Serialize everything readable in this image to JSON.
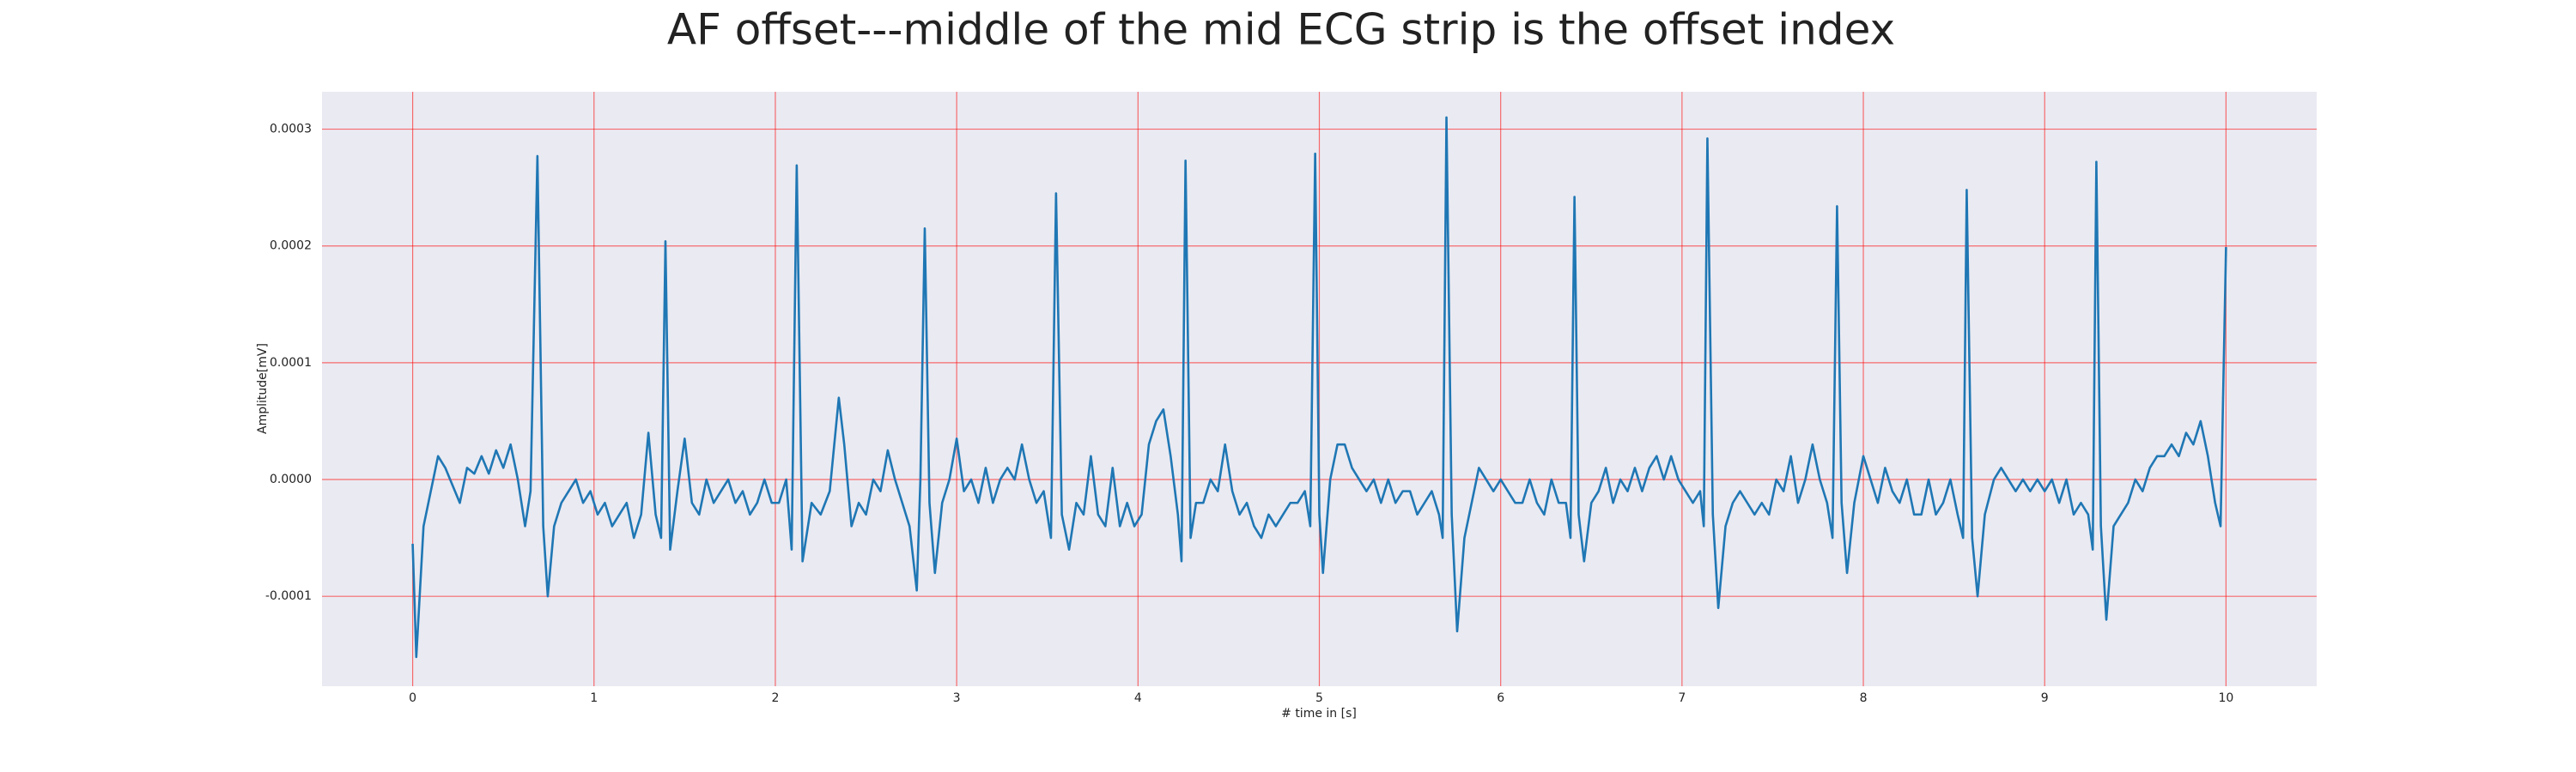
{
  "chart_data": {
    "type": "line",
    "title": "AF offset---middle of the mid ECG strip is the offset index",
    "xlabel": "# time in [s]",
    "ylabel": "Amplitude[mV]",
    "color": "#1f77b4",
    "grid": true,
    "xlim": [
      -0.5,
      10.5
    ],
    "ylim": [
      -0.000177,
      0.000332
    ],
    "xticks": [
      0,
      1,
      2,
      3,
      4,
      5,
      6,
      7,
      8,
      9,
      10
    ],
    "yticks": [
      -0.0001,
      {
        "value": 0,
        "label": "0.0000"
      },
      0.0001,
      0.0002,
      0.0003
    ],
    "x": [
      0,
      0.02,
      0.06,
      0.1,
      0.14,
      0.18,
      0.22,
      0.26,
      0.3,
      0.34,
      0.38,
      0.42,
      0.46,
      0.5,
      0.54,
      0.58,
      0.62,
      0.65,
      0.688,
      0.72,
      0.745,
      0.78,
      0.82,
      0.86,
      0.9,
      0.94,
      0.98,
      1.02,
      1.06,
      1.1,
      1.14,
      1.18,
      1.22,
      1.26,
      1.3,
      1.34,
      1.37,
      1.394,
      1.42,
      1.46,
      1.5,
      1.54,
      1.58,
      1.62,
      1.66,
      1.7,
      1.74,
      1.78,
      1.82,
      1.86,
      1.9,
      1.94,
      1.98,
      2.02,
      2.06,
      2.09,
      2.118,
      2.15,
      2.2,
      2.25,
      2.3,
      2.35,
      2.38,
      2.42,
      2.46,
      2.5,
      2.54,
      2.58,
      2.62,
      2.66,
      2.7,
      2.74,
      2.78,
      2.8,
      2.824,
      2.85,
      2.88,
      2.92,
      2.96,
      3.0,
      3.04,
      3.08,
      3.12,
      3.16,
      3.2,
      3.24,
      3.28,
      3.32,
      3.36,
      3.4,
      3.44,
      3.48,
      3.52,
      3.548,
      3.58,
      3.62,
      3.66,
      3.7,
      3.74,
      3.78,
      3.82,
      3.86,
      3.9,
      3.94,
      3.98,
      4.02,
      4.06,
      4.1,
      4.14,
      4.18,
      4.22,
      4.24,
      4.262,
      4.29,
      4.32,
      4.36,
      4.4,
      4.44,
      4.48,
      4.52,
      4.56,
      4.6,
      4.64,
      4.68,
      4.72,
      4.76,
      4.8,
      4.84,
      4.88,
      4.92,
      4.95,
      4.977,
      5.0,
      5.02,
      5.06,
      5.1,
      5.14,
      5.18,
      5.22,
      5.26,
      5.3,
      5.34,
      5.38,
      5.42,
      5.46,
      5.5,
      5.54,
      5.58,
      5.62,
      5.66,
      5.68,
      5.701,
      5.73,
      5.76,
      5.8,
      5.84,
      5.88,
      5.92,
      5.96,
      6.0,
      6.04,
      6.08,
      6.12,
      6.16,
      6.2,
      6.24,
      6.28,
      6.32,
      6.36,
      6.385,
      6.407,
      6.43,
      6.46,
      6.5,
      6.54,
      6.58,
      6.62,
      6.66,
      6.7,
      6.74,
      6.78,
      6.82,
      6.86,
      6.9,
      6.94,
      6.98,
      7.02,
      7.06,
      7.1,
      7.12,
      7.14,
      7.17,
      7.2,
      7.24,
      7.28,
      7.32,
      7.36,
      7.4,
      7.44,
      7.48,
      7.52,
      7.56,
      7.6,
      7.64,
      7.68,
      7.72,
      7.76,
      7.8,
      7.83,
      7.855,
      7.88,
      7.91,
      7.95,
      8.0,
      8.04,
      8.08,
      8.12,
      8.16,
      8.2,
      8.24,
      8.28,
      8.32,
      8.36,
      8.4,
      8.44,
      8.48,
      8.52,
      8.55,
      8.57,
      8.6,
      8.63,
      8.67,
      8.72,
      8.76,
      8.8,
      8.84,
      8.88,
      8.92,
      8.96,
      9.0,
      9.04,
      9.08,
      9.12,
      9.16,
      9.2,
      9.24,
      9.265,
      9.285,
      9.31,
      9.34,
      9.38,
      9.42,
      9.46,
      9.5,
      9.54,
      9.58,
      9.62,
      9.66,
      9.7,
      9.74,
      9.78,
      9.82,
      9.86,
      9.9,
      9.94,
      9.97,
      10.0
    ],
    "values": [
      -5.5e-05,
      -0.000152,
      -4e-05,
      -1e-05,
      2e-05,
      1e-05,
      -5e-06,
      -2e-05,
      1e-05,
      5e-06,
      2e-05,
      5e-06,
      2.5e-05,
      1e-05,
      3e-05,
      0.0,
      -4e-05,
      -1e-05,
      0.000277,
      -4e-05,
      -0.0001,
      -4e-05,
      -2e-05,
      -1e-05,
      0.0,
      -2e-05,
      -1e-05,
      -3e-05,
      -2e-05,
      -4e-05,
      -3e-05,
      -2e-05,
      -5e-05,
      -3e-05,
      4e-05,
      -3e-05,
      -5e-05,
      0.000204,
      -6e-05,
      -1e-05,
      3.5e-05,
      -2e-05,
      -3e-05,
      0.0,
      -2e-05,
      -1e-05,
      0.0,
      -2e-05,
      -1e-05,
      -3e-05,
      -2e-05,
      0.0,
      -2e-05,
      -2e-05,
      0.0,
      -6e-05,
      0.000269,
      -7e-05,
      -2e-05,
      -3e-05,
      -1e-05,
      7e-05,
      3e-05,
      -4e-05,
      -2e-05,
      -3e-05,
      0.0,
      -1e-05,
      2.5e-05,
      0.0,
      -2e-05,
      -4e-05,
      -9.5e-05,
      0.0,
      0.000215,
      -2e-05,
      -8e-05,
      -2e-05,
      0.0,
      3.5e-05,
      -1e-05,
      0.0,
      -2e-05,
      1e-05,
      -2e-05,
      0.0,
      1e-05,
      0.0,
      3e-05,
      0.0,
      -2e-05,
      -1e-05,
      -5e-05,
      0.000245,
      -3e-05,
      -6e-05,
      -2e-05,
      -3e-05,
      2e-05,
      -3e-05,
      -4e-05,
      1e-05,
      -4e-05,
      -2e-05,
      -4e-05,
      -3e-05,
      3e-05,
      5e-05,
      6e-05,
      2e-05,
      -3e-05,
      -7e-05,
      0.000273,
      -5e-05,
      -2e-05,
      -2e-05,
      0.0,
      -1e-05,
      3e-05,
      -1e-05,
      -3e-05,
      -2e-05,
      -4e-05,
      -5e-05,
      -3e-05,
      -4e-05,
      -3e-05,
      -2e-05,
      -2e-05,
      -1e-05,
      -4e-05,
      0.000279,
      -3e-05,
      -8e-05,
      0.0,
      3e-05,
      3e-05,
      1e-05,
      0.0,
      -1e-05,
      0.0,
      -2e-05,
      0.0,
      -2e-05,
      -1e-05,
      -1e-05,
      -3e-05,
      -2e-05,
      -1e-05,
      -3e-05,
      -5e-05,
      0.00031,
      -3e-05,
      -0.00013,
      -5e-05,
      -2e-05,
      1e-05,
      0.0,
      -1e-05,
      0.0,
      -1e-05,
      -2e-05,
      -2e-05,
      0.0,
      -2e-05,
      -3e-05,
      0.0,
      -2e-05,
      -2e-05,
      -5e-05,
      0.000242,
      -3e-05,
      -7e-05,
      -2e-05,
      -1e-05,
      1e-05,
      -2e-05,
      0.0,
      -1e-05,
      1e-05,
      -1e-05,
      1e-05,
      2e-05,
      0.0,
      2e-05,
      0.0,
      -1e-05,
      -2e-05,
      -1e-05,
      -4e-05,
      0.000292,
      -3e-05,
      -0.00011,
      -4e-05,
      -2e-05,
      -1e-05,
      -2e-05,
      -3e-05,
      -2e-05,
      -3e-05,
      0.0,
      -1e-05,
      2e-05,
      -2e-05,
      0.0,
      3e-05,
      0.0,
      -2e-05,
      -5e-05,
      0.000234,
      -2e-05,
      -8e-05,
      -2e-05,
      2e-05,
      0.0,
      -2e-05,
      1e-05,
      -1e-05,
      -2e-05,
      0.0,
      -3e-05,
      -3e-05,
      0.0,
      -3e-05,
      -2e-05,
      0.0,
      -3e-05,
      -5e-05,
      0.000248,
      -5e-05,
      -0.0001,
      -3e-05,
      0.0,
      1e-05,
      0.0,
      -1e-05,
      0.0,
      -1e-05,
      0.0,
      -1e-05,
      0.0,
      -2e-05,
      0.0,
      -3e-05,
      -2e-05,
      -3e-05,
      -6e-05,
      0.000272,
      -4e-05,
      -0.00012,
      -4e-05,
      -3e-05,
      -2e-05,
      0.0,
      -1e-05,
      1e-05,
      2e-05,
      2e-05,
      3e-05,
      2e-05,
      4e-05,
      3e-05,
      5e-05,
      2e-05,
      -2e-05,
      -4e-05,
      0.000199
    ]
  }
}
